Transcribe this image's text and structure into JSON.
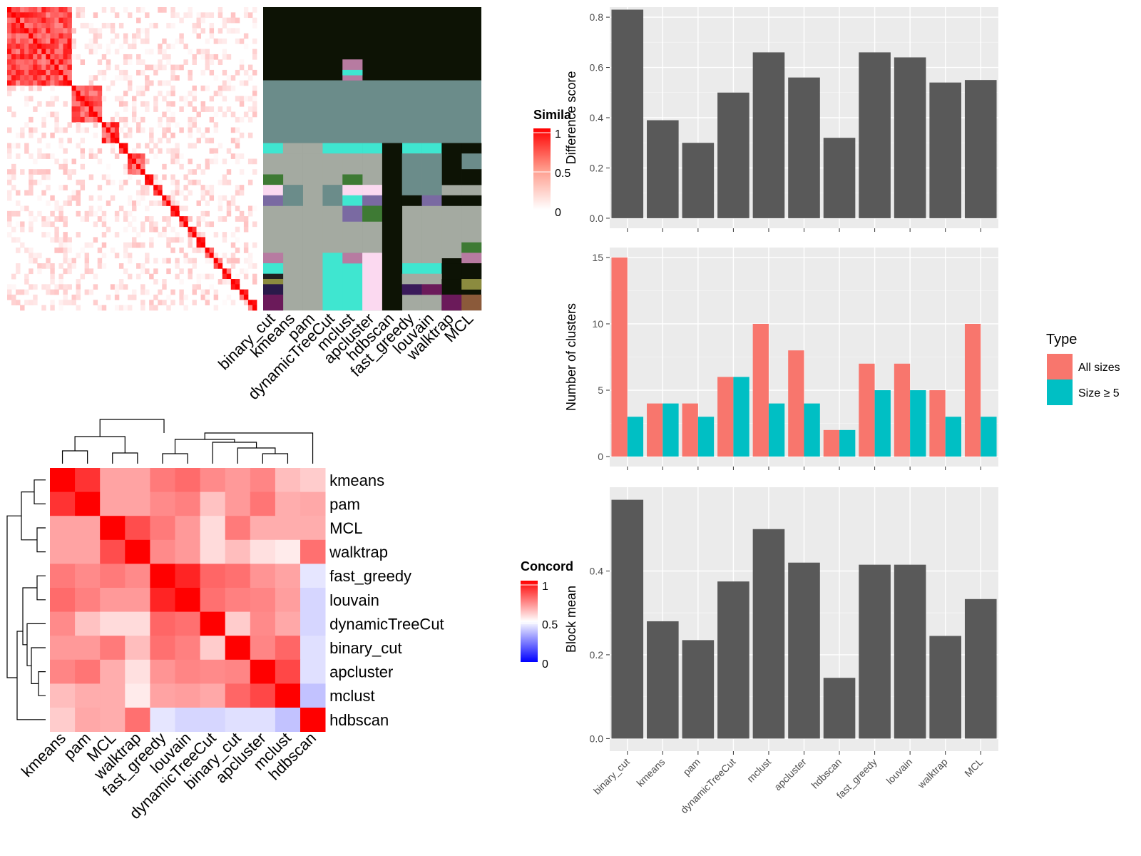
{
  "methods_rows": [
    "binary_cut",
    "kmeans",
    "pam",
    "dynamicTreeCut",
    "mclust",
    "apcluster",
    "hdbscan",
    "fast_greedy",
    "louvain",
    "walktrap",
    "MCL"
  ],
  "similarity_legend": {
    "title": "Simila",
    "ticks": [
      "1",
      "0.5",
      "0"
    ]
  },
  "concordance_legend": {
    "title": "Concord",
    "ticks": [
      "1",
      "0.5",
      "0"
    ]
  },
  "colors": {
    "panel_bg": "#ebebeb",
    "bar_dark": "#595959",
    "all_sizes": "#f8766d",
    "size_ge5": "#00bfc4",
    "heat_high": "#ff0000",
    "heat_low": "#ffffff",
    "conc_low": "#0000ff"
  },
  "concordance": {
    "order": [
      "kmeans",
      "pam",
      "MCL",
      "walktrap",
      "fast_greedy",
      "louvain",
      "dynamicTreeCut",
      "binary_cut",
      "apcluster",
      "mclust",
      "hdbscan"
    ],
    "matrix": [
      [
        1.0,
        0.9,
        0.68,
        0.68,
        0.76,
        0.79,
        0.73,
        0.7,
        0.74,
        0.63,
        0.6
      ],
      [
        0.9,
        1.0,
        0.68,
        0.68,
        0.73,
        0.75,
        0.62,
        0.7,
        0.77,
        0.66,
        0.67
      ],
      [
        0.68,
        0.68,
        1.0,
        0.85,
        0.76,
        0.7,
        0.57,
        0.76,
        0.66,
        0.66,
        0.66
      ],
      [
        0.68,
        0.68,
        0.85,
        1.0,
        0.73,
        0.7,
        0.57,
        0.63,
        0.56,
        0.54,
        0.78
      ],
      [
        0.76,
        0.73,
        0.76,
        0.73,
        1.0,
        0.93,
        0.8,
        0.78,
        0.71,
        0.68,
        0.45
      ],
      [
        0.79,
        0.75,
        0.7,
        0.7,
        0.93,
        1.0,
        0.78,
        0.75,
        0.74,
        0.69,
        0.42
      ],
      [
        0.73,
        0.62,
        0.57,
        0.57,
        0.8,
        0.78,
        1.0,
        0.6,
        0.73,
        0.67,
        0.42
      ],
      [
        0.7,
        0.7,
        0.76,
        0.63,
        0.78,
        0.75,
        0.6,
        1.0,
        0.74,
        0.8,
        0.44
      ],
      [
        0.74,
        0.77,
        0.66,
        0.56,
        0.71,
        0.74,
        0.73,
        0.74,
        1.0,
        0.86,
        0.44
      ],
      [
        0.63,
        0.66,
        0.66,
        0.54,
        0.68,
        0.69,
        0.67,
        0.8,
        0.86,
        1.0,
        0.38
      ],
      [
        0.6,
        0.67,
        0.66,
        0.78,
        0.45,
        0.42,
        0.42,
        0.44,
        0.44,
        0.38,
        1.0
      ]
    ]
  },
  "chart_data": [
    {
      "type": "bar",
      "categories": [
        "binary_cut",
        "kmeans",
        "pam",
        "dynamicTreeCut",
        "mclust",
        "apcluster",
        "hdbscan",
        "fast_greedy",
        "louvain",
        "walktrap",
        "MCL"
      ],
      "values": [
        0.83,
        0.39,
        0.3,
        0.5,
        0.66,
        0.56,
        0.32,
        0.66,
        0.64,
        0.54,
        0.55
      ],
      "xlabel": "",
      "ylabel": "Difference score",
      "yticks": [
        0.0,
        0.2,
        0.4,
        0.6,
        0.8
      ],
      "ytick_labels": [
        "0.0",
        "0.2",
        "0.4",
        "0.6",
        "0.8"
      ],
      "ylim": [
        -0.04,
        0.84
      ]
    },
    {
      "type": "bar",
      "categories": [
        "binary_cut",
        "kmeans",
        "pam",
        "dynamicTreeCut",
        "mclust",
        "apcluster",
        "hdbscan",
        "fast_greedy",
        "louvain",
        "walktrap",
        "MCL"
      ],
      "series": [
        {
          "name": "All sizes",
          "values": [
            15,
            4,
            4,
            6,
            10,
            8,
            2,
            7,
            7,
            5,
            10
          ]
        },
        {
          "name": "Size ≥ 5",
          "values": [
            3,
            4,
            3,
            6,
            4,
            4,
            2,
            5,
            5,
            3,
            3
          ]
        }
      ],
      "xlabel": "",
      "ylabel": "Number of clusters",
      "yticks": [
        0,
        5,
        10,
        15
      ],
      "ytick_labels": [
        "0",
        "5",
        "10",
        "15"
      ],
      "ylim": [
        -0.75,
        15.75
      ],
      "legend": {
        "title": "Type",
        "position": "right"
      }
    },
    {
      "type": "bar",
      "categories": [
        "binary_cut",
        "kmeans",
        "pam",
        "dynamicTreeCut",
        "mclust",
        "apcluster",
        "hdbscan",
        "fast_greedy",
        "louvain",
        "walktrap",
        "MCL"
      ],
      "values": [
        0.57,
        0.28,
        0.235,
        0.375,
        0.5,
        0.42,
        0.145,
        0.415,
        0.415,
        0.245,
        0.333
      ],
      "xlabel": "",
      "ylabel": "Block mean",
      "yticks": [
        0.0,
        0.2,
        0.4
      ],
      "ytick_labels": [
        "0.0",
        "0.2",
        "0.4"
      ],
      "ylim": [
        -0.03,
        0.6
      ]
    }
  ]
}
